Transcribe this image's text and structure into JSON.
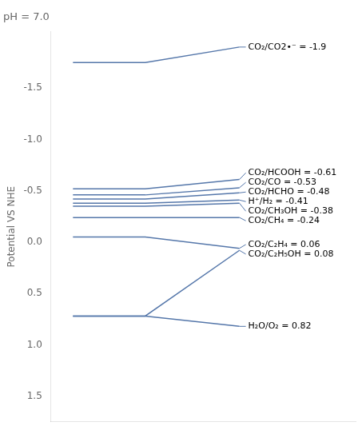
{
  "chart_data": {
    "type": "line",
    "title": "pH = 7.0",
    "ylabel": "Potential VS NHE",
    "x": [
      0.5,
      2.8,
      5.8
    ],
    "xlim": [
      -0.2,
      9.5
    ],
    "ylim": [
      1.75,
      -2.05
    ],
    "yticks": [
      -1.5,
      {
        "value": -1.0,
        "label": "-1.0"
      },
      -0.5,
      {
        "value": 0.0,
        "label": "0.0"
      },
      0.5,
      {
        "value": 1.0,
        "label": "1.0"
      },
      1.5
    ],
    "color": "#5577aa",
    "grid": false,
    "tick_labels": "y",
    "series": [
      {
        "values": [
          -1.75,
          -1.75,
          -1.9
        ]
      },
      {
        "values": [
          -0.52,
          -0.52,
          -0.61
        ]
      },
      {
        "values": [
          -0.46,
          -0.46,
          -0.53
        ]
      },
      {
        "values": [
          -0.42,
          -0.42,
          -0.48
        ]
      },
      {
        "values": [
          -0.38,
          -0.38,
          -0.41
        ]
      },
      {
        "values": [
          -0.35,
          -0.35,
          -0.38
        ]
      },
      {
        "values": [
          -0.24,
          -0.24,
          -0.24
        ]
      },
      {
        "values": [
          -0.05,
          -0.05,
          0.06
        ]
      },
      {
        "values": [
          0.72,
          0.72,
          0.08
        ]
      },
      {
        "values": [
          0.72,
          0.72,
          0.82
        ]
      }
    ],
    "annotations": [
      "CO₂/CO2•⁻ = -1.9",
      "CO₂/HCOOH = -0.61",
      "CO₂/CO = -0.53",
      "CO₂/HCHO = -0.48",
      "H⁺/H₂ = -0.41",
      "CO₂/CH₃OH = -0.38",
      "CO₂/CH₄ = -0.24",
      "CO₂/C₂H₄ = 0.06",
      "CO₂/C₂H₅OH = 0.08",
      "H₂O/O₂ = 0.82"
    ]
  }
}
